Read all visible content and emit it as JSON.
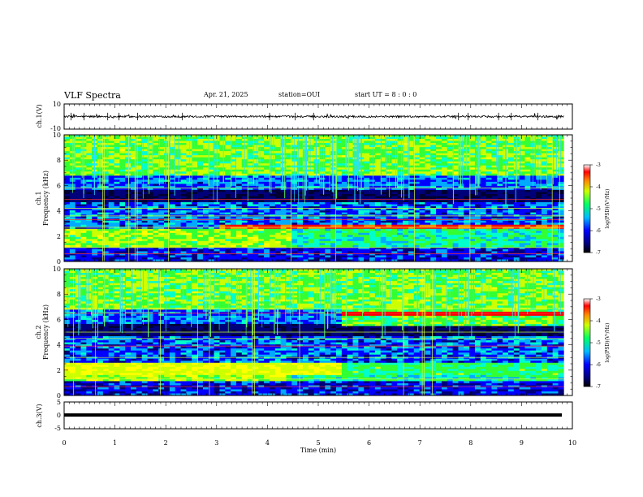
{
  "header": {
    "title": "VLF Spectra",
    "date": "Apr. 21, 2025",
    "station": "station=OUI",
    "start": "start  UT =   8 : 0  : 0"
  },
  "chart_data": [
    {
      "type": "line",
      "name": "ch1-waveform",
      "ylabel": "ch.1(V)",
      "ylim": [
        -10,
        10
      ],
      "ytick_labels": [
        "10",
        "-10"
      ],
      "baseline": 0,
      "xlim": [
        0,
        10
      ]
    },
    {
      "type": "heatmap",
      "name": "ch1-spectrogram",
      "ylabel_line1": "ch.1",
      "ylabel_line2": "Frequency  (kHz)",
      "ylim": [
        0,
        10
      ],
      "ytick_labels": [
        "0",
        "2",
        "4",
        "6",
        "8",
        "10"
      ],
      "xlim": [
        0,
        9.83
      ],
      "colorbar": {
        "label": "log(PSD)(V²/Hz)",
        "range": [
          -7,
          -3
        ],
        "tick_labels": [
          "-3",
          "-4",
          "-5",
          "-6",
          "-7"
        ]
      }
    },
    {
      "type": "heatmap",
      "name": "ch2-spectrogram",
      "ylabel_line1": "ch.2",
      "ylabel_line2": "Frequency  (kHz)",
      "ylim": [
        0,
        10
      ],
      "ytick_labels": [
        "0",
        "2",
        "4",
        "6",
        "8",
        "10"
      ],
      "xlim": [
        0,
        9.83
      ],
      "colorbar": {
        "label": "log(PSD)(V²/Hz)",
        "range": [
          -7,
          -3
        ],
        "tick_labels": [
          "-3",
          "-4",
          "-5",
          "-6",
          "-7"
        ]
      }
    },
    {
      "type": "line",
      "name": "ch3-waveform",
      "ylabel": "ch.3(V)",
      "ylim": [
        -5,
        5
      ],
      "ytick_labels": [
        "5",
        "0",
        "-5"
      ],
      "baseline": -1.5,
      "xlim": [
        0,
        10
      ]
    }
  ],
  "xaxis": {
    "label": "Time  (min)",
    "range": [
      0,
      10
    ],
    "tick_labels": [
      "0",
      "1",
      "2",
      "3",
      "4",
      "5",
      "6",
      "7",
      "8",
      "9",
      "10"
    ]
  },
  "colormap": [
    "#000033",
    "#00007a",
    "#0000ff",
    "#00aaff",
    "#00ffcc",
    "#33ff33",
    "#ccff00",
    "#ffff00",
    "#ff8800",
    "#ff0000",
    "#aa0000"
  ]
}
